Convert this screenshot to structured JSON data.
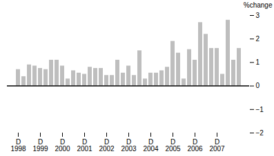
{
  "chart_data": {
    "type": "bar",
    "categories": [
      "D\n1998",
      null,
      null,
      null,
      "D\n1999",
      null,
      null,
      null,
      "D\n2000",
      null,
      null,
      null,
      "D\n2001",
      null,
      null,
      null,
      "D\n2002",
      null,
      null,
      null,
      "D\n2003",
      null,
      null,
      null,
      "D\n2004",
      null,
      null,
      null,
      "D\n2005",
      null,
      null,
      null,
      "D\n2006",
      null,
      null,
      null,
      "D\n2007",
      null,
      null,
      null,
      null
    ],
    "values": [
      0.7,
      0.4,
      0.9,
      0.85,
      0.75,
      0.7,
      1.1,
      1.1,
      0.85,
      0.3,
      0.65,
      0.55,
      0.5,
      0.8,
      0.75,
      0.75,
      0.45,
      0.45,
      1.1,
      0.55,
      0.85,
      0.45,
      1.5,
      0.3,
      0.55,
      0.55,
      0.65,
      0.8,
      1.9,
      1.4,
      0.3,
      1.55,
      1.1,
      2.7,
      2.2,
      1.6,
      1.6,
      0.5,
      2.8,
      1.1,
      1.6
    ],
    "color": "#bebebe",
    "ylabel": "%change",
    "ylim": [
      -2,
      3
    ],
    "yticks": [
      {
        "value": -2,
        "label": "−2"
      },
      {
        "value": -1,
        "label": "−1"
      },
      0,
      1,
      2,
      3
    ]
  }
}
